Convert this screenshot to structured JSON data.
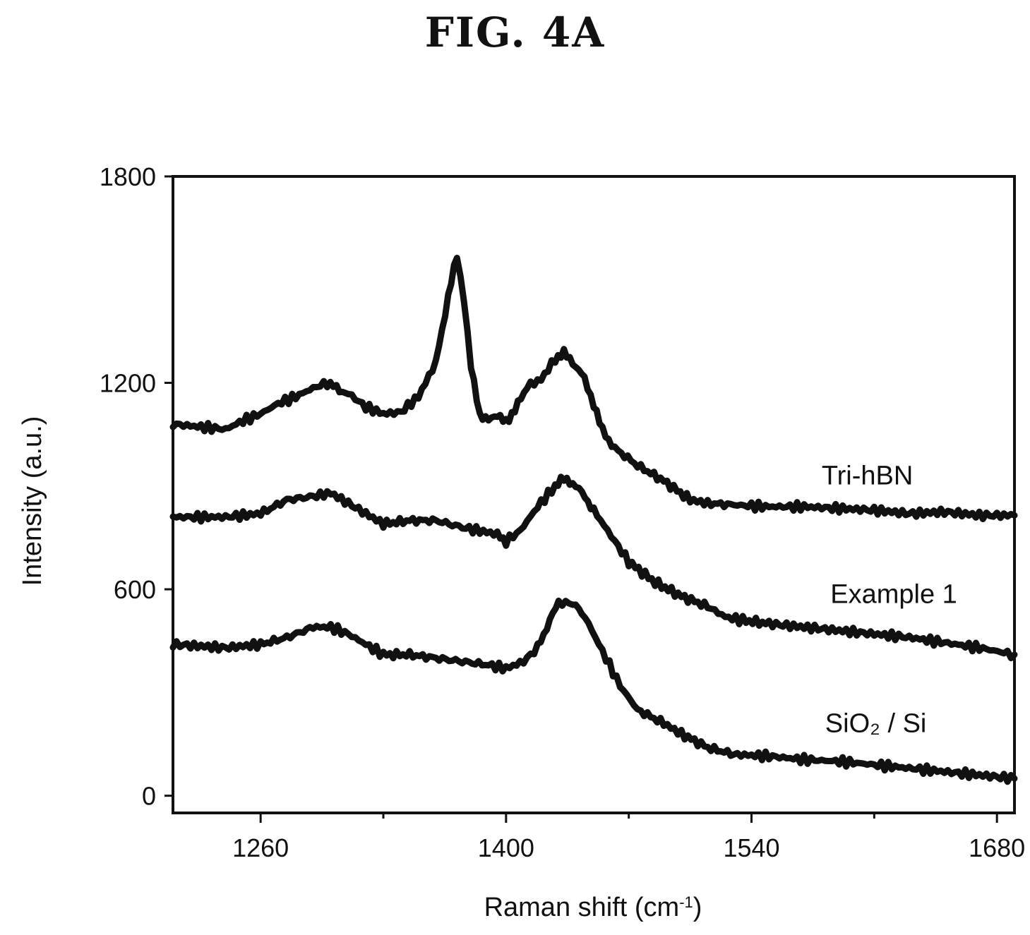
{
  "figure": {
    "title": "FIG.  4A"
  },
  "chart_data": {
    "type": "line",
    "xlabel": "Raman shift (cm",
    "xlabel_sup": "-1",
    "xlabel_close": ")",
    "ylabel": "Intensity (a.u.)",
    "xlim": [
      1210,
      1690
    ],
    "ylim": [
      -50,
      1800
    ],
    "xticks": [
      1260,
      1400,
      1540,
      1680
    ],
    "yticks": [
      0,
      600,
      1200,
      1800
    ],
    "minor_xticks": [
      1330,
      1470,
      1610
    ],
    "legend": "inline-right",
    "grid": false,
    "series": [
      {
        "name": "Tri-hBN",
        "label_x": 1580,
        "label_y": 905,
        "x": [
          1210,
          1230,
          1240,
          1250,
          1260,
          1270,
          1280,
          1290,
          1298,
          1305,
          1310,
          1320,
          1330,
          1340,
          1350,
          1360,
          1367,
          1372,
          1376,
          1380,
          1385,
          1390,
          1395,
          1400,
          1405,
          1412,
          1420,
          1428,
          1433,
          1438,
          1443,
          1450,
          1455,
          1462,
          1475,
          1490,
          1505,
          1515,
          1530,
          1550,
          1570,
          1590,
          1610,
          1630,
          1650,
          1670,
          1690
        ],
        "y": [
          1080,
          1070,
          1065,
          1090,
          1110,
          1140,
          1160,
          1185,
          1200,
          1180,
          1170,
          1130,
          1110,
          1115,
          1160,
          1260,
          1450,
          1570,
          1440,
          1250,
          1100,
          1100,
          1100,
          1090,
          1120,
          1190,
          1210,
          1270,
          1285,
          1260,
          1230,
          1140,
          1060,
          1010,
          960,
          915,
          860,
          850,
          845,
          840,
          840,
          835,
          830,
          820,
          825,
          815,
          815
        ]
      },
      {
        "name": "Example 1",
        "label_x": 1585,
        "label_y": 560,
        "x": [
          1210,
          1240,
          1260,
          1275,
          1290,
          1300,
          1310,
          1320,
          1330,
          1345,
          1360,
          1375,
          1385,
          1395,
          1400,
          1408,
          1418,
          1428,
          1433,
          1438,
          1445,
          1450,
          1458,
          1470,
          1485,
          1500,
          1515,
          1525,
          1535,
          1550,
          1570,
          1590,
          1610,
          1630,
          1650,
          1670,
          1690
        ],
        "y": [
          810,
          810,
          820,
          860,
          870,
          880,
          850,
          820,
          790,
          800,
          800,
          780,
          770,
          760,
          740,
          770,
          840,
          900,
          920,
          910,
          870,
          830,
          770,
          680,
          620,
          580,
          550,
          520,
          510,
          500,
          490,
          480,
          470,
          460,
          445,
          430,
          410
        ]
      },
      {
        "name": "SiO₂  / Si",
        "label_x": 1582,
        "label_y": 185,
        "x": [
          1210,
          1240,
          1260,
          1275,
          1290,
          1300,
          1310,
          1320,
          1330,
          1345,
          1360,
          1375,
          1390,
          1400,
          1410,
          1418,
          1425,
          1430,
          1438,
          1445,
          1455,
          1465,
          1475,
          1490,
          1500,
          1515,
          1530,
          1550,
          1570,
          1590,
          1610,
          1630,
          1650,
          1670,
          1690
        ],
        "y": [
          440,
          430,
          440,
          460,
          490,
          490,
          470,
          440,
          410,
          410,
          400,
          390,
          380,
          370,
          390,
          430,
          510,
          560,
          560,
          520,
          420,
          320,
          250,
          210,
          180,
          140,
          120,
          115,
          105,
          100,
          90,
          80,
          70,
          60,
          50
        ]
      }
    ]
  }
}
